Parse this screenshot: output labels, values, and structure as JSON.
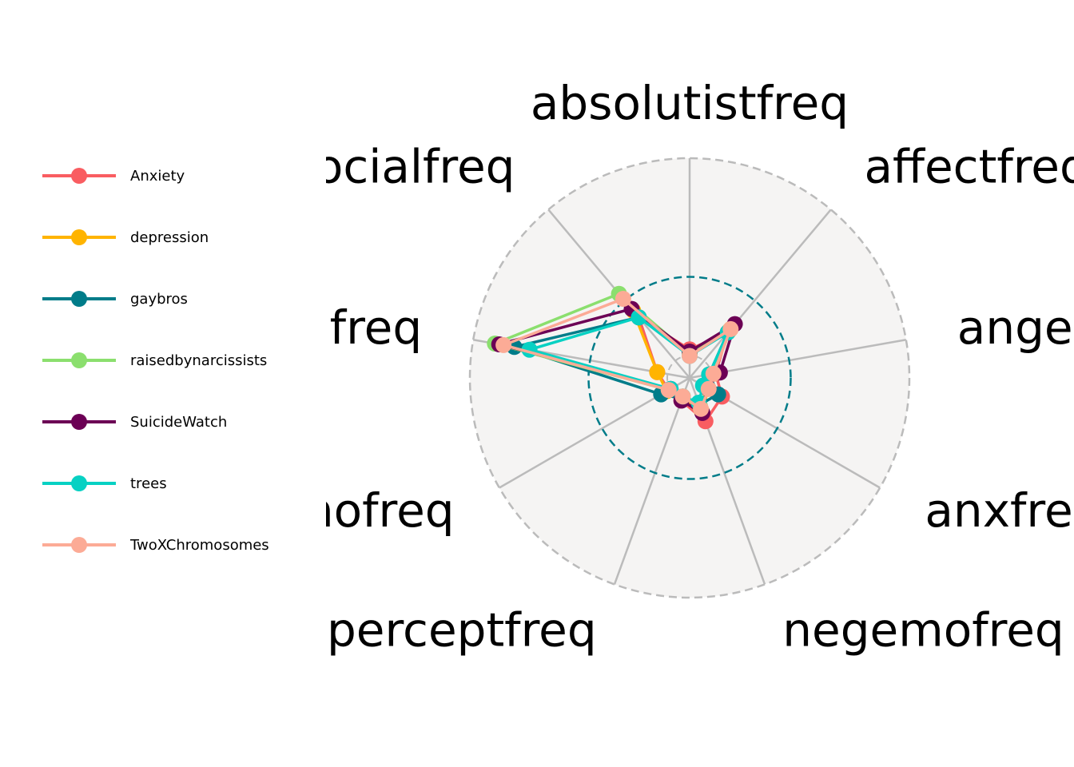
{
  "chart_data": {
    "type": "radar",
    "title": "",
    "categories": [
      "absolutistfreq",
      "affectfreq",
      "angerfreq",
      "anxfreq",
      "negemofreq",
      "perceptfreq",
      "posemofreq",
      "sadfreq",
      "socialfreq"
    ],
    "rlim": [
      0,
      5
    ],
    "reference_ring": 2.3,
    "grid": true,
    "legend_placement": "left",
    "series": [
      {
        "name": "Anxiety",
        "color": "#f95d61",
        "values": [
          0.65,
          1.35,
          0.6,
          0.85,
          1.05,
          0.55,
          0.55,
          0.75,
          1.8
        ]
      },
      {
        "name": "depression",
        "color": "#ffb400",
        "values": [
          0.6,
          1.45,
          0.55,
          0.5,
          0.8,
          0.5,
          0.6,
          0.75,
          2.0
        ]
      },
      {
        "name": "gaybros",
        "color": "#007c89",
        "values": [
          0.55,
          1.35,
          0.45,
          0.75,
          0.65,
          0.5,
          0.75,
          4.05,
          1.8
        ]
      },
      {
        "name": "raisedbynarcissists",
        "color": "#8bdf6e",
        "values": [
          0.55,
          1.4,
          0.55,
          0.45,
          0.7,
          0.45,
          0.55,
          4.5,
          2.5
        ]
      },
      {
        "name": "SuicideWatch",
        "color": "#6c0055",
        "values": [
          0.6,
          1.6,
          0.7,
          0.45,
          0.85,
          0.55,
          0.5,
          4.4,
          2.05
        ]
      },
      {
        "name": "trees",
        "color": "#07d1c3",
        "values": [
          0.5,
          1.35,
          0.45,
          0.35,
          0.6,
          0.45,
          0.5,
          3.7,
          1.8
        ]
      },
      {
        "name": "TwoXChromosomes",
        "color": "#fcab96",
        "values": [
          0.5,
          1.45,
          0.55,
          0.5,
          0.75,
          0.45,
          0.55,
          4.3,
          2.35
        ]
      }
    ]
  },
  "colors": {
    "background_disc": "#f5f4f3",
    "spoke": "#bbbbbb",
    "outer_ring": "#bbbbbb",
    "reference_ring": "#007c89"
  }
}
